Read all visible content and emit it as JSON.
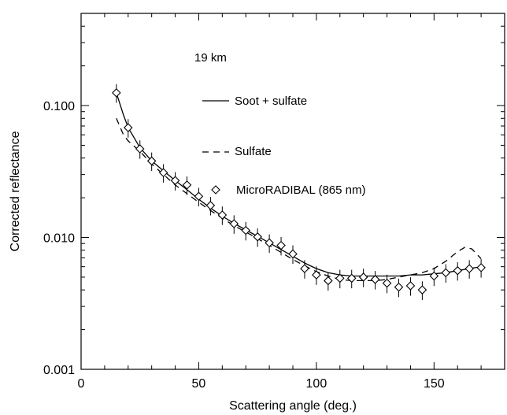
{
  "chart_data": {
    "type": "scatter",
    "xlabel": "Scattering angle (deg.)",
    "ylabel": "Corrected reflectance",
    "xlim": [
      0,
      180
    ],
    "ylim": [
      0.001,
      0.5
    ],
    "yscale": "log",
    "xticks": [
      0,
      50,
      100,
      150
    ],
    "xtick_labels": [
      "0",
      "50",
      "100",
      "150"
    ],
    "yticks": [
      0.001,
      0.01,
      0.1
    ],
    "ytick_labels": [
      "0.001",
      "0.010",
      "0.100"
    ],
    "annotation": "19 km",
    "legend_position": "top-center",
    "series": [
      {
        "name": "Soot + sulfate",
        "style": "solid-line",
        "x": [
          15,
          18,
          20,
          25,
          30,
          35,
          40,
          45,
          50,
          55,
          60,
          65,
          70,
          75,
          80,
          85,
          90,
          95,
          100,
          105,
          110,
          115,
          120,
          125,
          130,
          135,
          140,
          145,
          150,
          155,
          160,
          165,
          170
        ],
        "y": [
          0.125,
          0.085,
          0.068,
          0.048,
          0.038,
          0.032,
          0.027,
          0.023,
          0.0195,
          0.0167,
          0.0145,
          0.0128,
          0.0114,
          0.0102,
          0.0091,
          0.0081,
          0.0072,
          0.0064,
          0.0058,
          0.0054,
          0.0052,
          0.0051,
          0.0051,
          0.0051,
          0.0051,
          0.0051,
          0.0052,
          0.0052,
          0.0053,
          0.0054,
          0.0056,
          0.0058,
          0.006
        ]
      },
      {
        "name": "Sulfate",
        "style": "dashed-line",
        "x": [
          15,
          18,
          20,
          25,
          30,
          35,
          40,
          45,
          50,
          55,
          60,
          65,
          70,
          75,
          80,
          85,
          90,
          95,
          100,
          105,
          110,
          115,
          120,
          125,
          130,
          135,
          140,
          145,
          150,
          155,
          160,
          163,
          166,
          170
        ],
        "y": [
          0.08,
          0.06,
          0.054,
          0.045,
          0.036,
          0.03,
          0.025,
          0.0215,
          0.0185,
          0.016,
          0.014,
          0.0123,
          0.011,
          0.0098,
          0.0087,
          0.0077,
          0.0068,
          0.0061,
          0.0055,
          0.0051,
          0.0048,
          0.0047,
          0.0047,
          0.0047,
          0.0048,
          0.005,
          0.0052,
          0.0054,
          0.0058,
          0.0066,
          0.0078,
          0.0084,
          0.0082,
          0.0069
        ]
      },
      {
        "name": "MicroRADIBAL (865 nm)",
        "style": "diamond-markers",
        "x": [
          15,
          20,
          25,
          30,
          35,
          40,
          45,
          50,
          55,
          60,
          65,
          70,
          75,
          80,
          85,
          90,
          95,
          100,
          105,
          110,
          115,
          120,
          125,
          130,
          135,
          140,
          145,
          150,
          155,
          160,
          165,
          170
        ],
        "y": [
          0.125,
          0.068,
          0.047,
          0.038,
          0.031,
          0.027,
          0.025,
          0.0205,
          0.0175,
          0.0148,
          0.0127,
          0.0113,
          0.0101,
          0.0091,
          0.0087,
          0.0075,
          0.0058,
          0.0052,
          0.0047,
          0.0049,
          0.0049,
          0.005,
          0.0048,
          0.0045,
          0.0042,
          0.0043,
          0.004,
          0.0051,
          0.0054,
          0.0056,
          0.0058,
          0.0059
        ],
        "error_frac": 0.16
      }
    ]
  }
}
